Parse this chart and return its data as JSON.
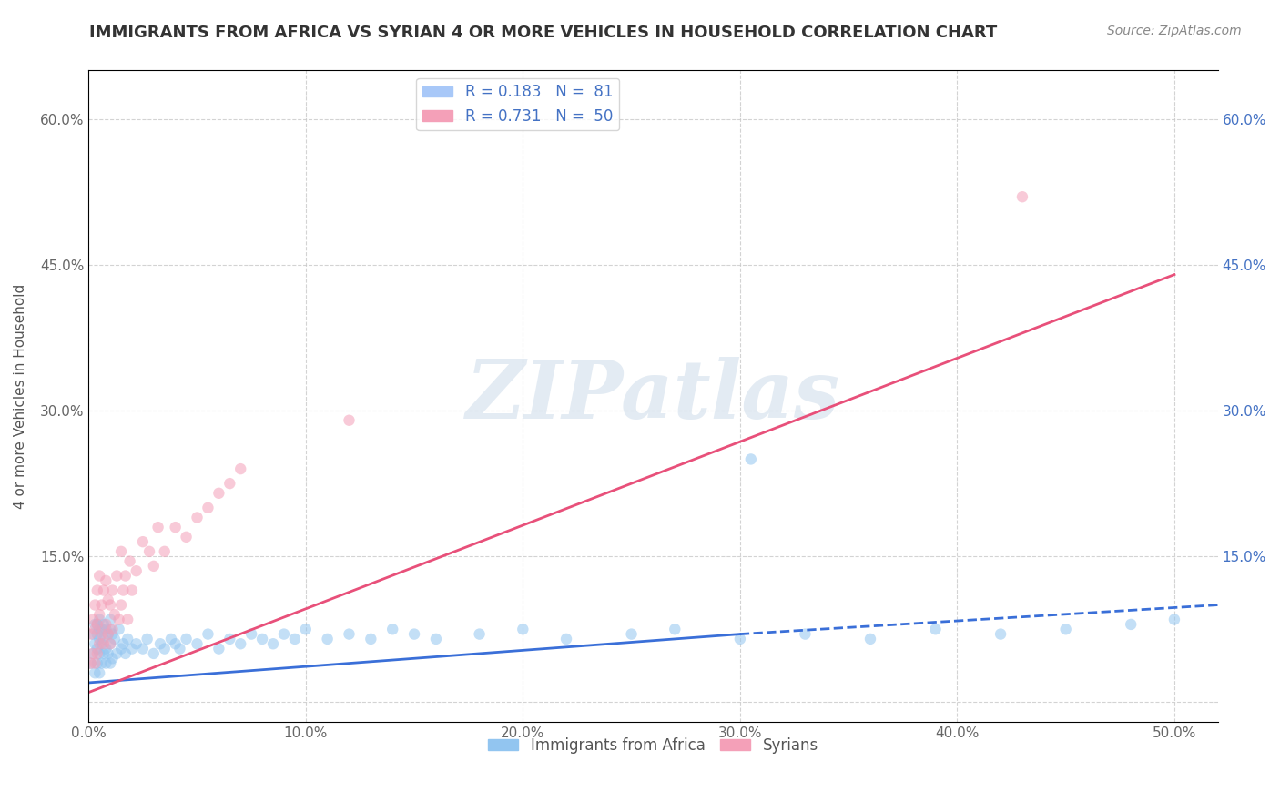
{
  "title": "IMMIGRANTS FROM AFRICA VS SYRIAN 4 OR MORE VEHICLES IN HOUSEHOLD CORRELATION CHART",
  "source": "Source: ZipAtlas.com",
  "ylabel": "4 or more Vehicles in Household",
  "watermark": "ZIPatlas",
  "legend_entries": [
    {
      "label": "R = 0.183   N =  81",
      "color": "#a8c8f8"
    },
    {
      "label": "R = 0.731   N =  50",
      "color": "#f4a0b8"
    }
  ],
  "xlim": [
    0.0,
    0.52
  ],
  "ylim": [
    -0.02,
    0.65
  ],
  "xticks": [
    0.0,
    0.1,
    0.2,
    0.3,
    0.4,
    0.5
  ],
  "xtick_labels": [
    "0.0%",
    "10.0%",
    "20.0%",
    "30.0%",
    "40.0%",
    "50.0%"
  ],
  "yticks": [
    0.0,
    0.15,
    0.3,
    0.45,
    0.6
  ],
  "ytick_labels": [
    "",
    "15.0%",
    "30.0%",
    "45.0%",
    "60.0%"
  ],
  "africa_scatter": {
    "x": [
      0.001,
      0.002,
      0.002,
      0.003,
      0.003,
      0.003,
      0.004,
      0.004,
      0.004,
      0.004,
      0.005,
      0.005,
      0.005,
      0.005,
      0.005,
      0.006,
      0.006,
      0.006,
      0.007,
      0.007,
      0.007,
      0.008,
      0.008,
      0.008,
      0.009,
      0.009,
      0.01,
      0.01,
      0.01,
      0.01,
      0.011,
      0.011,
      0.012,
      0.013,
      0.014,
      0.015,
      0.016,
      0.017,
      0.018,
      0.02,
      0.022,
      0.025,
      0.027,
      0.03,
      0.033,
      0.035,
      0.038,
      0.04,
      0.042,
      0.045,
      0.05,
      0.055,
      0.06,
      0.065,
      0.07,
      0.075,
      0.08,
      0.085,
      0.09,
      0.095,
      0.1,
      0.11,
      0.12,
      0.13,
      0.14,
      0.15,
      0.16,
      0.18,
      0.2,
      0.22,
      0.25,
      0.27,
      0.3,
      0.33,
      0.36,
      0.39,
      0.42,
      0.45,
      0.48,
      0.5,
      0.305
    ],
    "y": [
      0.04,
      0.05,
      0.07,
      0.03,
      0.06,
      0.08,
      0.04,
      0.055,
      0.07,
      0.08,
      0.03,
      0.05,
      0.065,
      0.075,
      0.085,
      0.04,
      0.06,
      0.075,
      0.05,
      0.065,
      0.08,
      0.04,
      0.055,
      0.075,
      0.05,
      0.07,
      0.04,
      0.06,
      0.075,
      0.085,
      0.045,
      0.07,
      0.065,
      0.05,
      0.075,
      0.055,
      0.06,
      0.05,
      0.065,
      0.055,
      0.06,
      0.055,
      0.065,
      0.05,
      0.06,
      0.055,
      0.065,
      0.06,
      0.055,
      0.065,
      0.06,
      0.07,
      0.055,
      0.065,
      0.06,
      0.07,
      0.065,
      0.06,
      0.07,
      0.065,
      0.075,
      0.065,
      0.07,
      0.065,
      0.075,
      0.07,
      0.065,
      0.07,
      0.075,
      0.065,
      0.07,
      0.075,
      0.065,
      0.07,
      0.065,
      0.075,
      0.07,
      0.075,
      0.08,
      0.085,
      0.25
    ],
    "color": "#92c5f0",
    "alpha": 0.55,
    "size": 80
  },
  "syrian_scatter": {
    "x": [
      0.001,
      0.001,
      0.002,
      0.002,
      0.003,
      0.003,
      0.003,
      0.004,
      0.004,
      0.004,
      0.005,
      0.005,
      0.005,
      0.006,
      0.006,
      0.007,
      0.007,
      0.008,
      0.008,
      0.009,
      0.009,
      0.01,
      0.01,
      0.011,
      0.011,
      0.012,
      0.013,
      0.014,
      0.015,
      0.015,
      0.016,
      0.017,
      0.018,
      0.019,
      0.02,
      0.022,
      0.025,
      0.028,
      0.03,
      0.032,
      0.035,
      0.04,
      0.045,
      0.05,
      0.055,
      0.06,
      0.065,
      0.07,
      0.12,
      0.43
    ],
    "y": [
      0.04,
      0.07,
      0.05,
      0.085,
      0.04,
      0.075,
      0.1,
      0.05,
      0.08,
      0.115,
      0.06,
      0.09,
      0.13,
      0.07,
      0.1,
      0.06,
      0.115,
      0.08,
      0.125,
      0.07,
      0.105,
      0.06,
      0.1,
      0.075,
      0.115,
      0.09,
      0.13,
      0.085,
      0.1,
      0.155,
      0.115,
      0.13,
      0.085,
      0.145,
      0.115,
      0.135,
      0.165,
      0.155,
      0.14,
      0.18,
      0.155,
      0.18,
      0.17,
      0.19,
      0.2,
      0.215,
      0.225,
      0.24,
      0.29,
      0.52
    ],
    "color": "#f4a0b8",
    "alpha": 0.55,
    "size": 80
  },
  "africa_trendline_solid": {
    "x": [
      0.0,
      0.3
    ],
    "y": [
      0.02,
      0.07
    ],
    "color": "#3a6fd8",
    "linewidth": 2.0
  },
  "africa_trendline_dashed": {
    "x": [
      0.3,
      0.52
    ],
    "y": [
      0.07,
      0.1
    ],
    "color": "#3a6fd8",
    "linewidth": 2.0
  },
  "syrian_trendline": {
    "x": [
      0.0,
      0.5
    ],
    "y": [
      0.01,
      0.44
    ],
    "color": "#e8507a",
    "linewidth": 2.0
  },
  "background_color": "#ffffff",
  "grid_color": "#c8c8c8",
  "title_fontsize": 13,
  "axis_label_fontsize": 11,
  "tick_fontsize": 11,
  "legend_fontsize": 12,
  "source_fontsize": 10
}
